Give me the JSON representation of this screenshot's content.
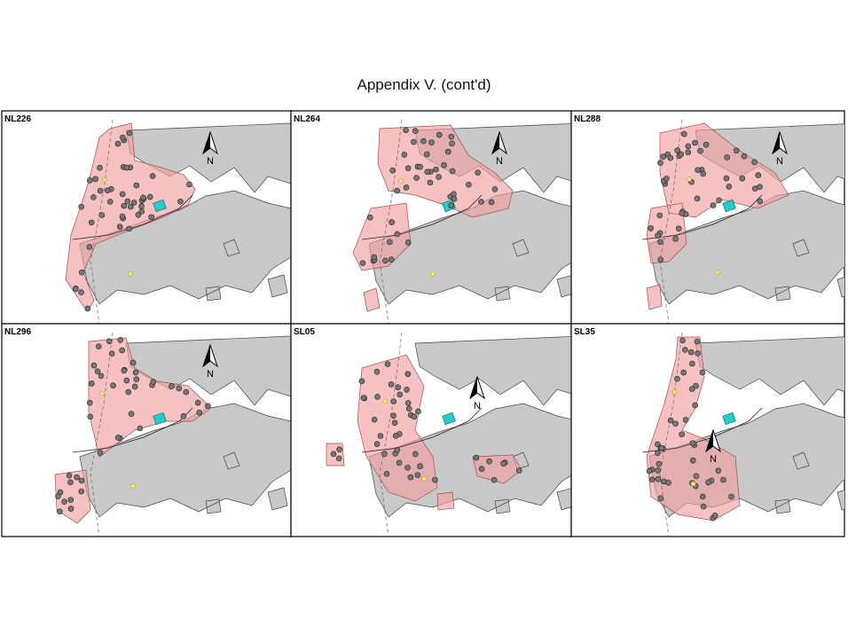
{
  "header": {
    "title": "Appendix V.  (cont'd)"
  },
  "panels": [
    {
      "label": "NL226",
      "north": "N"
    },
    {
      "label": "NL264",
      "north": "N"
    },
    {
      "label": "NL288",
      "north": "N"
    },
    {
      "label": "NL296",
      "north": "N"
    },
    {
      "label": "SL05",
      "north": "N"
    },
    {
      "label": "SL35",
      "north": "N"
    }
  ]
}
